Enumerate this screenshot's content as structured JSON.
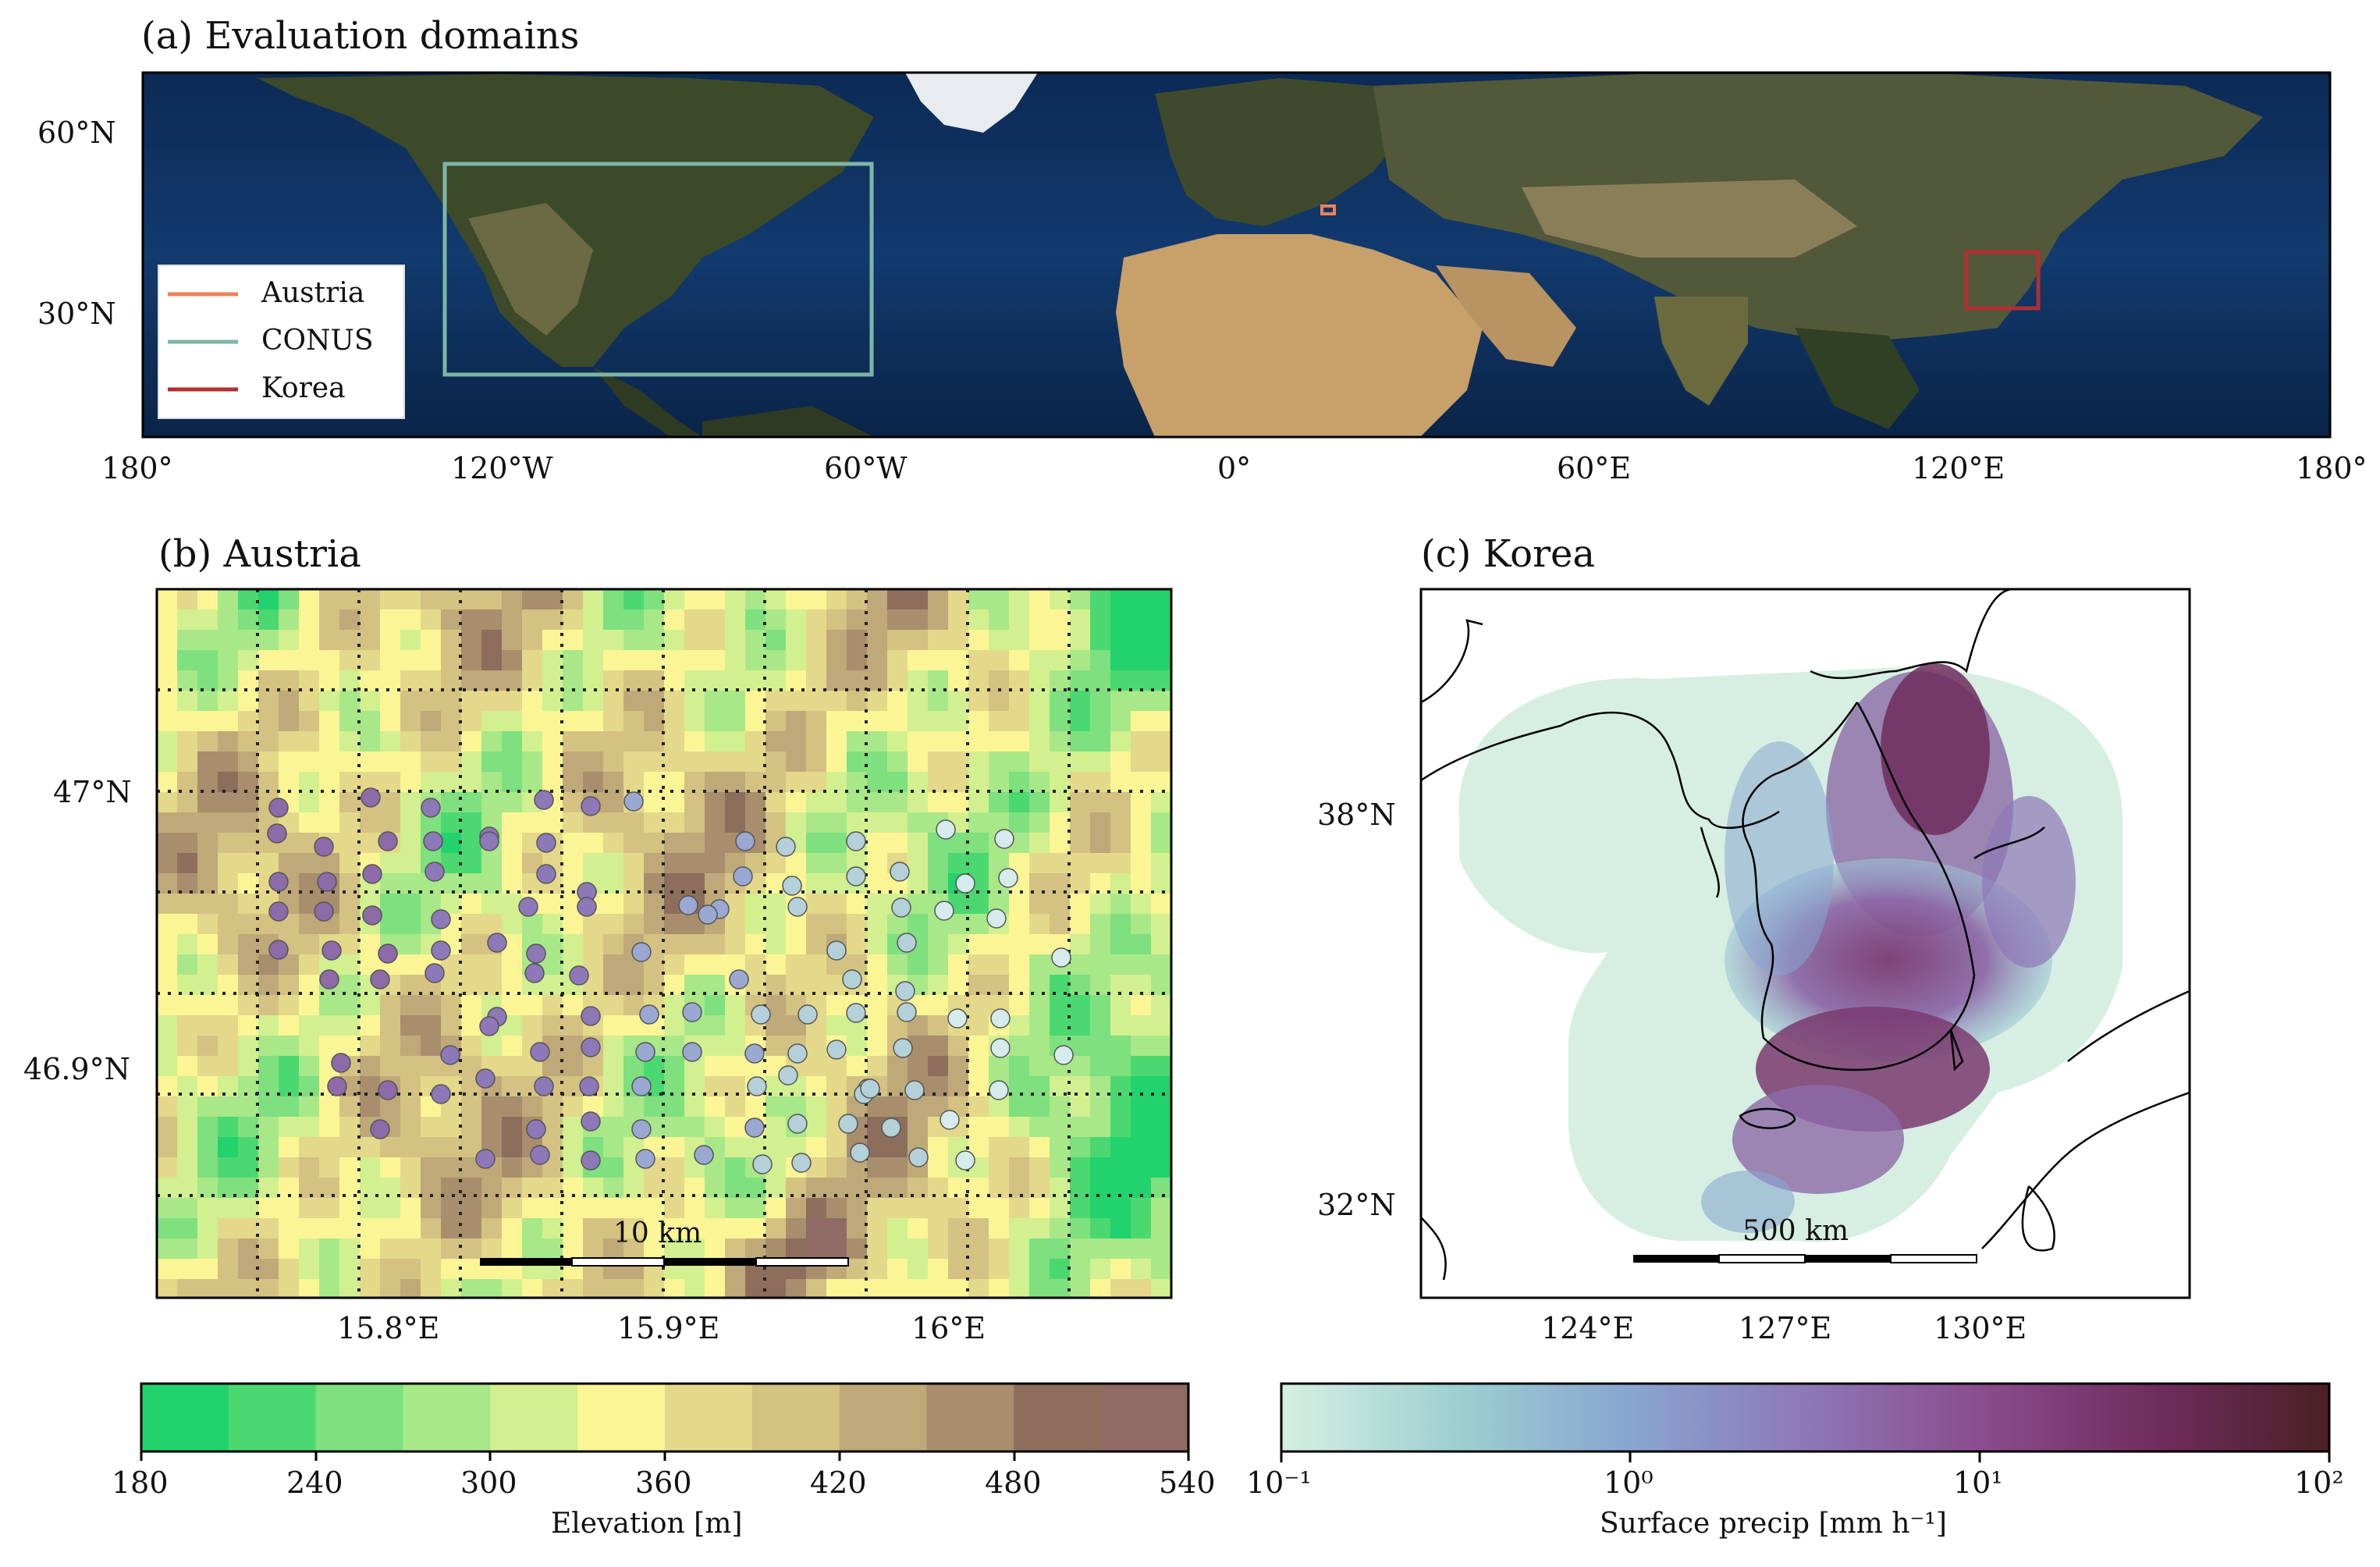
{
  "panels": {
    "a": {
      "title": "(a) Evaluation domains",
      "lat_ticks": [
        "60°N",
        "30°N"
      ],
      "lon_ticks": [
        "180°",
        "120°W",
        "60°W",
        "0°",
        "60°E",
        "120°E",
        "180°"
      ],
      "legend": [
        {
          "label": "Austria",
          "color": "#e8845a"
        },
        {
          "label": "CONUS",
          "color": "#7fb5a5"
        },
        {
          "label": "Korea",
          "color": "#b03030"
        }
      ]
    },
    "b": {
      "title": "(b) Austria",
      "lat_ticks": [
        "47°N",
        "46.9°N"
      ],
      "lon_ticks": [
        "15.8°E",
        "15.9°E",
        "16°E"
      ],
      "scalebar": "10 km"
    },
    "c": {
      "title": "(c) Korea",
      "lat_ticks": [
        "38°N",
        "32°N"
      ],
      "lon_ticks": [
        "124°E",
        "127°E",
        "130°E"
      ],
      "scalebar": "500 km"
    }
  },
  "colorbars": {
    "elevation": {
      "label": "Elevation [m]",
      "ticks": [
        "180",
        "240",
        "300",
        "360",
        "420",
        "480",
        "540"
      ],
      "colors": [
        "#22d26c",
        "#4cd870",
        "#7ee07e",
        "#a8e888",
        "#d2f090",
        "#fbf596",
        "#e4d88a",
        "#d4c282",
        "#bfa978",
        "#a88e6c",
        "#8d6e5c",
        "#906a64"
      ]
    },
    "precip": {
      "label": "Surface precip [mm h⁻¹]",
      "ticks": [
        "10⁻¹",
        "10⁰",
        "10¹",
        "10²"
      ],
      "colors": [
        "#d6efe2",
        "#9dcfd0",
        "#88a6d0",
        "#8d78b8",
        "#8a4c8c",
        "#6e2c5c",
        "#4a2024"
      ]
    }
  }
}
